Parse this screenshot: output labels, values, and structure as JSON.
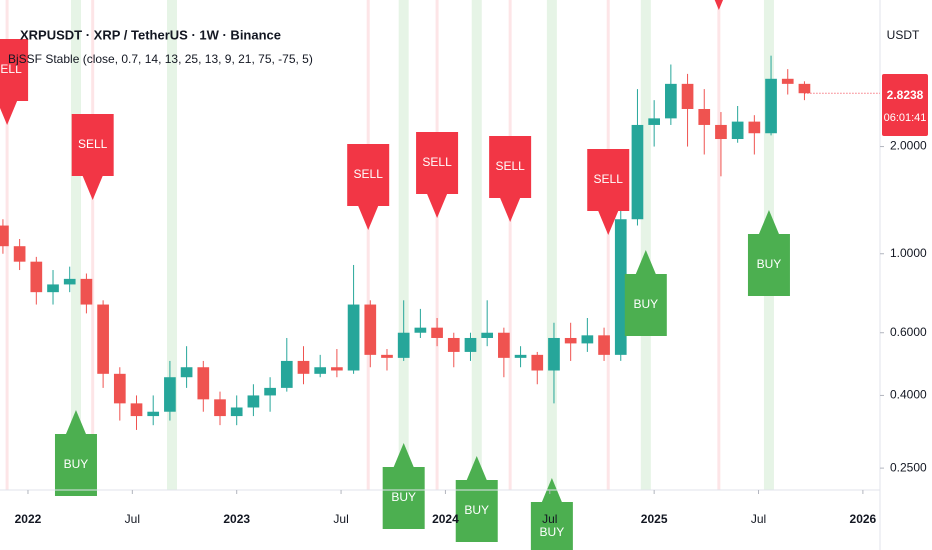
{
  "chart_data": {
    "type": "candlestick",
    "title": "XRPUSDT · XRP / TetherUS · 1W · Binance",
    "subtitle": "BjSSF Stable (close, 0.7, 14, 13, 25, 13, 9, 21, 75, -75, 5)",
    "currency": "USDT",
    "countdown": "06:01:41",
    "log_scale": true,
    "up_color": "#26a69a",
    "down_color": "#ef5350",
    "x": [
      2021.88,
      2021.96,
      2022.04,
      2022.12,
      2022.2,
      2022.28,
      2022.36,
      2022.44,
      2022.52,
      2022.6,
      2022.68,
      2022.76,
      2022.84,
      2022.92,
      2023.0,
      2023.08,
      2023.16,
      2023.24,
      2023.32,
      2023.4,
      2023.48,
      2023.56,
      2023.64,
      2023.72,
      2023.8,
      2023.88,
      2023.96,
      2024.04,
      2024.12,
      2024.2,
      2024.28,
      2024.36,
      2024.44,
      2024.52,
      2024.6,
      2024.68,
      2024.76,
      2024.84,
      2024.92,
      2025.0,
      2025.08,
      2025.16,
      2025.24,
      2025.32,
      2025.4,
      2025.48,
      2025.56,
      2025.64,
      2025.72
    ],
    "open": [
      1.2,
      1.05,
      0.95,
      0.78,
      0.82,
      0.85,
      0.72,
      0.46,
      0.38,
      0.35,
      0.36,
      0.45,
      0.48,
      0.39,
      0.35,
      0.37,
      0.4,
      0.42,
      0.5,
      0.46,
      0.48,
      0.47,
      0.72,
      0.52,
      0.51,
      0.6,
      0.62,
      0.58,
      0.53,
      0.58,
      0.6,
      0.51,
      0.52,
      0.47,
      0.58,
      0.56,
      0.59,
      0.52,
      1.25,
      2.3,
      2.4,
      3.0,
      2.55,
      2.3,
      2.1,
      2.35,
      2.18,
      3.1,
      3.0
    ],
    "high": [
      1.25,
      1.1,
      0.98,
      0.9,
      0.92,
      0.88,
      0.74,
      0.48,
      0.4,
      0.4,
      0.5,
      0.55,
      0.5,
      0.41,
      0.4,
      0.43,
      0.45,
      0.58,
      0.55,
      0.52,
      0.54,
      0.93,
      0.74,
      0.54,
      0.74,
      0.7,
      0.66,
      0.6,
      0.6,
      0.74,
      0.62,
      0.55,
      0.53,
      0.64,
      0.64,
      0.66,
      0.62,
      1.35,
      2.9,
      2.7,
      3.4,
      3.2,
      2.9,
      2.5,
      2.6,
      2.45,
      3.6,
      3.3,
      3.05
    ],
    "low": [
      1.0,
      0.9,
      0.72,
      0.72,
      0.78,
      0.68,
      0.42,
      0.34,
      0.32,
      0.33,
      0.34,
      0.42,
      0.36,
      0.33,
      0.33,
      0.35,
      0.36,
      0.41,
      0.43,
      0.45,
      0.45,
      0.46,
      0.48,
      0.47,
      0.5,
      0.58,
      0.55,
      0.48,
      0.5,
      0.55,
      0.45,
      0.48,
      0.43,
      0.38,
      0.5,
      0.53,
      0.5,
      0.5,
      1.2,
      2.0,
      2.3,
      2.0,
      1.9,
      1.65,
      2.05,
      1.9,
      2.15,
      2.8,
      2.7
    ],
    "close": [
      1.05,
      0.95,
      0.78,
      0.82,
      0.85,
      0.72,
      0.46,
      0.38,
      0.35,
      0.36,
      0.45,
      0.48,
      0.39,
      0.35,
      0.37,
      0.4,
      0.42,
      0.5,
      0.46,
      0.48,
      0.47,
      0.72,
      0.52,
      0.51,
      0.6,
      0.62,
      0.58,
      0.53,
      0.58,
      0.6,
      0.51,
      0.52,
      0.47,
      0.58,
      0.56,
      0.59,
      0.52,
      1.25,
      2.3,
      2.4,
      3.0,
      2.55,
      2.3,
      2.1,
      2.35,
      2.18,
      3.1,
      3.0,
      2.8238
    ],
    "xlim": [
      2021.866,
      2026.082
    ],
    "xticks": [
      {
        "value": 2022,
        "label": "2022"
      },
      {
        "value": 2022.5,
        "label": "Jul"
      },
      {
        "value": 2023,
        "label": "2023"
      },
      {
        "value": 2023.5,
        "label": "Jul"
      },
      {
        "value": 2024,
        "label": "2024"
      },
      {
        "value": 2024.5,
        "label": "Jul"
      },
      {
        "value": 2025,
        "label": "2025"
      },
      {
        "value": 2025.5,
        "label": "Jul"
      },
      {
        "value": 2026,
        "label": "2026"
      }
    ],
    "ylim": [
      0.217,
      5.16
    ],
    "yticks": [
      {
        "value": 0.25,
        "label": "0.2500"
      },
      {
        "value": 0.4,
        "label": "0.4000"
      },
      {
        "value": 0.6,
        "label": "0.6000"
      },
      {
        "value": 1,
        "label": "1.0000"
      },
      {
        "value": 2,
        "label": "2.0000"
      }
    ],
    "sell_bands": [
      2021.9,
      2022.31,
      2023.63,
      2023.96,
      2024.31,
      2024.78,
      2025.31
    ],
    "buy_bands": [
      2022.23,
      2022.69,
      2023.8,
      2024.15,
      2024.51,
      2024.96,
      2025.55
    ],
    "signals": [
      {
        "label": "SELL",
        "x": 2021.9
      },
      {
        "label": "SELL",
        "x": 2022.31
      },
      {
        "label": "SELL",
        "x": 2023.63
      },
      {
        "label": "SELL",
        "x": 2023.96
      },
      {
        "label": "SELL",
        "x": 2024.31
      },
      {
        "label": "SELL",
        "x": 2024.78
      },
      {
        "label": "SELL",
        "x": 2025.31
      },
      {
        "label": "BUY",
        "x": 2022.23
      },
      {
        "label": "BUY",
        "x": 2023.8
      },
      {
        "label": "BUY",
        "x": 2024.15
      },
      {
        "label": "BUY",
        "x": 2024.51
      },
      {
        "label": "BUY",
        "x": 2024.96
      },
      {
        "label": "BUY",
        "x": 2025.55
      }
    ]
  }
}
